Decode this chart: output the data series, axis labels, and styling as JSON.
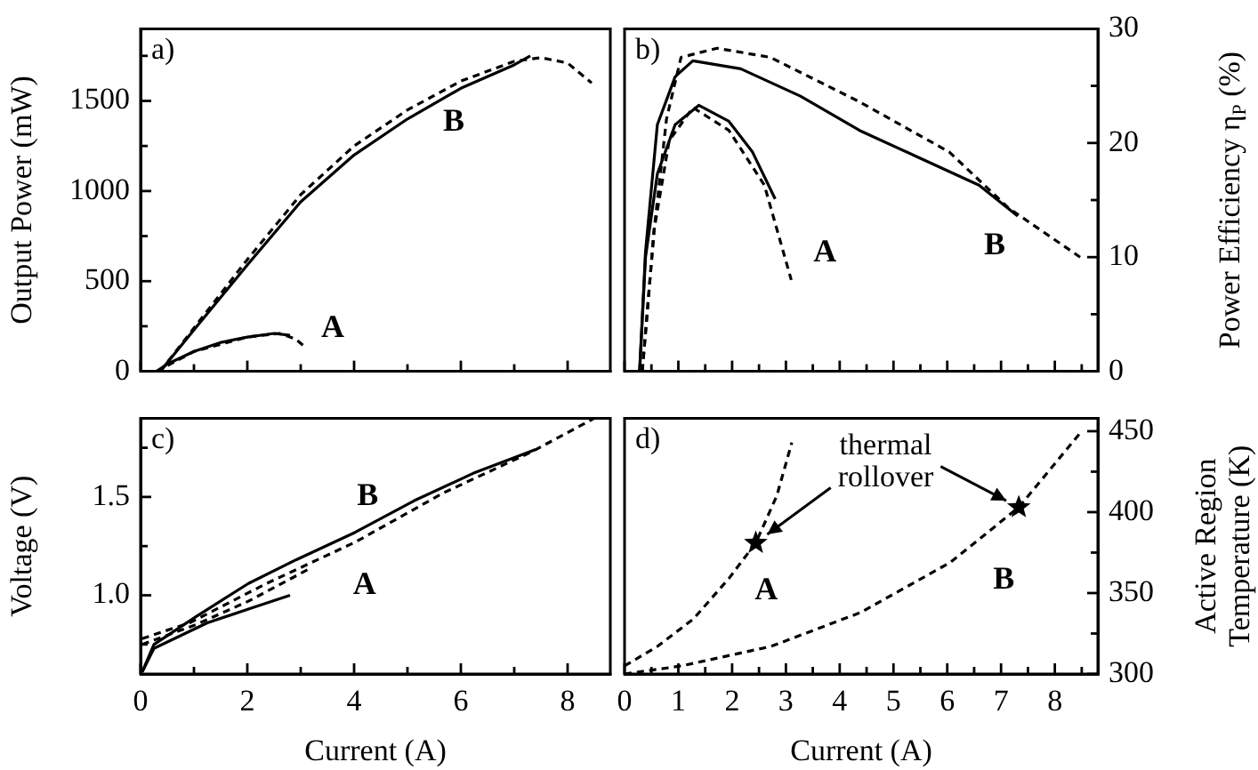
{
  "chart_data": [
    {
      "type": "line",
      "title": "a)",
      "ylabel": "Output Power (mW)",
      "xlim": [
        0,
        8.8
      ],
      "xticks": [
        0,
        {
          "value": 1,
          "label": null
        },
        2,
        {
          "value": 3,
          "label": null
        },
        4,
        {
          "value": 5,
          "label": null
        },
        6,
        {
          "value": 7,
          "label": null
        },
        8
      ],
      "ylim": [
        0,
        1900
      ],
      "yticks": [
        0,
        {
          "value": 250,
          "label": null
        },
        500,
        {
          "value": 750,
          "label": null
        },
        1000,
        {
          "value": 1250,
          "label": null
        },
        1500,
        {
          "value": 1750,
          "label": null
        }
      ],
      "tick_labels": "y",
      "legend": false,
      "series": [
        {
          "color": "#000000",
          "line_style": "solid",
          "x": [
            0,
            0.37,
            1,
            2,
            3,
            4,
            5,
            6,
            7,
            7.3
          ],
          "values": [
            0,
            0,
            230,
            590,
            940,
            1200,
            1400,
            1570,
            1700,
            1750
          ]
        },
        {
          "color": "#000000",
          "line_style": "dashed",
          "x": [
            0.37,
            1,
            2,
            3,
            4,
            5,
            6,
            7,
            7.5,
            8,
            8.45
          ],
          "values": [
            0,
            240,
            620,
            980,
            1250,
            1450,
            1610,
            1720,
            1740,
            1710,
            1600
          ]
        },
        {
          "color": "#000000",
          "line_style": "solid",
          "x": [
            0,
            0.3,
            0.5,
            1,
            1.5,
            2,
            2.5,
            2.8
          ],
          "values": [
            0,
            0,
            40,
            110,
            160,
            190,
            210,
            200
          ]
        },
        {
          "color": "#000000",
          "line_style": "dashed",
          "x": [
            0.3,
            1,
            2,
            2.6,
            2.9,
            3.1
          ],
          "values": [
            0,
            110,
            190,
            210,
            180,
            130
          ]
        }
      ],
      "annotations": [
        {
          "text": "B",
          "x": 5.2,
          "y": 1430
        },
        {
          "text": "A",
          "x": 3.1,
          "y": 130
        }
      ]
    },
    {
      "type": "line",
      "title": "b)",
      "ylabel": "Power Efficiency η$_{P}$ (%)",
      "xlim": [
        0,
        8.8
      ],
      "xticks": [
        0,
        {
          "value": 0.5,
          "label": null
        },
        1,
        {
          "value": 1.5,
          "label": null
        },
        2,
        {
          "value": 2.5,
          "label": null
        },
        3,
        {
          "value": 3.5,
          "label": null
        },
        4,
        {
          "value": 4.5,
          "label": null
        },
        5,
        {
          "value": 5.5,
          "label": null
        },
        6,
        {
          "value": 6.5,
          "label": null
        },
        7,
        {
          "value": 7.5,
          "label": null
        },
        8,
        {
          "value": 8.5,
          "label": null
        }
      ],
      "ylim": [
        0,
        30
      ],
      "yticks": [
        0,
        {
          "value": 5,
          "label": null
        },
        10,
        {
          "value": 15,
          "label": null
        },
        20,
        {
          "value": 25,
          "label": null
        },
        30
      ],
      "tick_labels": "y",
      "legend": false,
      "series": [
        {
          "color": "#000000",
          "line_style": "solid",
          "x": [
            0.28,
            0.39,
            0.61,
            0.94,
            1.27,
            2.16,
            3.27,
            4.37,
            5.48,
            6.59,
            7.31
          ],
          "values": [
            0,
            10.5,
            21.6,
            25.8,
            27.2,
            26.5,
            24.1,
            21.1,
            18.7,
            16.3,
            13.6
          ]
        },
        {
          "color": "#000000",
          "line_style": "dashed",
          "x": [
            0.33,
            0.55,
            0.78,
            1.05,
            1.72,
            2.71,
            4.37,
            6.04,
            7.14,
            8.47
          ],
          "values": [
            0,
            12.4,
            22.1,
            27.5,
            28.3,
            27.5,
            23.6,
            19.2,
            14.3,
            10
          ]
        },
        {
          "color": "#000000",
          "line_style": "solid",
          "x": [
            0.28,
            0.39,
            0.61,
            0.94,
            1.38,
            1.94,
            2.38,
            2.8
          ],
          "values": [
            0,
            10,
            17.3,
            21.6,
            23.3,
            21.9,
            19.2,
            15.1
          ]
        },
        {
          "color": "#000000",
          "line_style": "dashed",
          "x": [
            0.33,
            0.55,
            0.83,
            1.27,
            1.94,
            2.6,
            3.1
          ],
          "values": [
            0,
            12.4,
            20.2,
            23.1,
            21.1,
            16.3,
            8
          ]
        }
      ],
      "annotations": [
        {
          "text": "A",
          "x": 2.9,
          "y": 11.3
        },
        {
          "text": "B",
          "x": 7.31,
          "y": 13.6
        }
      ]
    },
    {
      "type": "line",
      "title": "c)",
      "xlabel": "Current (A)",
      "ylabel": "Voltage (V)",
      "xlim": [
        0,
        8.8
      ],
      "xticks": [
        0,
        {
          "value": 1,
          "label": null
        },
        2,
        {
          "value": 3,
          "label": null
        },
        4,
        {
          "value": 5,
          "label": null
        },
        6,
        {
          "value": 7,
          "label": null
        },
        8
      ],
      "ylim": [
        0.6,
        1.9
      ],
      "yticks": [
        {
          "value": 0.75,
          "label": null
        },
        {
          "value": 1,
          "label": "1.0"
        },
        {
          "value": 1.25,
          "label": null
        },
        1.5,
        {
          "value": 1.75,
          "label": null
        }
      ],
      "legend": false,
      "series": [
        {
          "color": "#000000",
          "line_style": "solid",
          "x": [
            0.03,
            0.25,
            1.03,
            2.02,
            2.91,
            4.02,
            5.12,
            6.23,
            7.39
          ],
          "values": [
            0.61,
            0.75,
            0.89,
            1.06,
            1.18,
            1.32,
            1.48,
            1.62,
            1.74
          ]
        },
        {
          "color": "#000000",
          "line_style": "dashed",
          "x": [
            0.03,
            0.92,
            2.36,
            4.02,
            5.67,
            7.33,
            8.5
          ],
          "values": [
            0.78,
            0.86,
            1.06,
            1.27,
            1.52,
            1.73,
            1.9
          ]
        },
        {
          "color": "#000000",
          "line_style": "solid",
          "x": [
            0.03,
            0.25,
            1.25,
            2.02,
            2.8
          ],
          "values": [
            0.61,
            0.73,
            0.86,
            0.93,
            1
          ]
        },
        {
          "color": "#000000",
          "line_style": "dashed",
          "x": [
            0.03,
            1.03,
            2.02,
            3.13
          ],
          "values": [
            0.75,
            0.85,
            0.97,
            1.13
          ]
        }
      ],
      "annotations": [
        {
          "text": "B",
          "x": 4.02,
          "y": 1.32
        },
        {
          "text": "A",
          "x": 3.13,
          "y": 1.13
        }
      ]
    },
    {
      "type": "line",
      "title": "d)",
      "xlabel": "Current (A)",
      "ylabel": "Active Region Temperature (K)",
      "xlim": [
        0,
        8.8
      ],
      "xticks": [
        0,
        {
          "value": 0.5,
          "label": null
        },
        1,
        {
          "value": 1.5,
          "label": null
        },
        2,
        {
          "value": 2.5,
          "label": null
        },
        3,
        {
          "value": 3.5,
          "label": null
        },
        4,
        {
          "value": 4.5,
          "label": null
        },
        5,
        {
          "value": 5.5,
          "label": null
        },
        6,
        {
          "value": 6.5,
          "label": null
        },
        7,
        {
          "value": 7.5,
          "label": null
        },
        8,
        {
          "value": 8.5,
          "label": null
        }
      ],
      "ylim": [
        300,
        458
      ],
      "yticks": [
        300,
        {
          "value": 325,
          "label": null
        },
        350,
        {
          "value": 375,
          "label": null
        },
        400,
        {
          "value": 425,
          "label": null
        },
        450
      ],
      "legend": false,
      "series": [
        {
          "color": "#000000",
          "line_style": "dashed",
          "x": [
            0,
            0.61,
            1.28,
            1.94,
            2.44,
            2.83,
            3.11
          ],
          "values": [
            305,
            317,
            334,
            359,
            381,
            410,
            443
          ]
        },
        {
          "color": "#000000",
          "line_style": "dashed",
          "x": [
            0,
            1.06,
            2.72,
            4.39,
            6.06,
            7.33,
            8.5
          ],
          "values": [
            300,
            305,
            317,
            338,
            369,
            403,
            450
          ]
        },
        {
          "type": "scatter",
          "marker": "star",
          "color": "#000000",
          "x": [
            2.44,
            7.33
          ],
          "values": [
            381,
            403
          ]
        }
      ],
      "annotations": [
        {
          "text": "thermal rollover",
          "x": 2.44,
          "y": 381
        },
        {
          "text": "A",
          "x": 1.94,
          "y": 359
        },
        {
          "text": "B",
          "x": 6.06,
          "y": 369
        }
      ]
    }
  ]
}
